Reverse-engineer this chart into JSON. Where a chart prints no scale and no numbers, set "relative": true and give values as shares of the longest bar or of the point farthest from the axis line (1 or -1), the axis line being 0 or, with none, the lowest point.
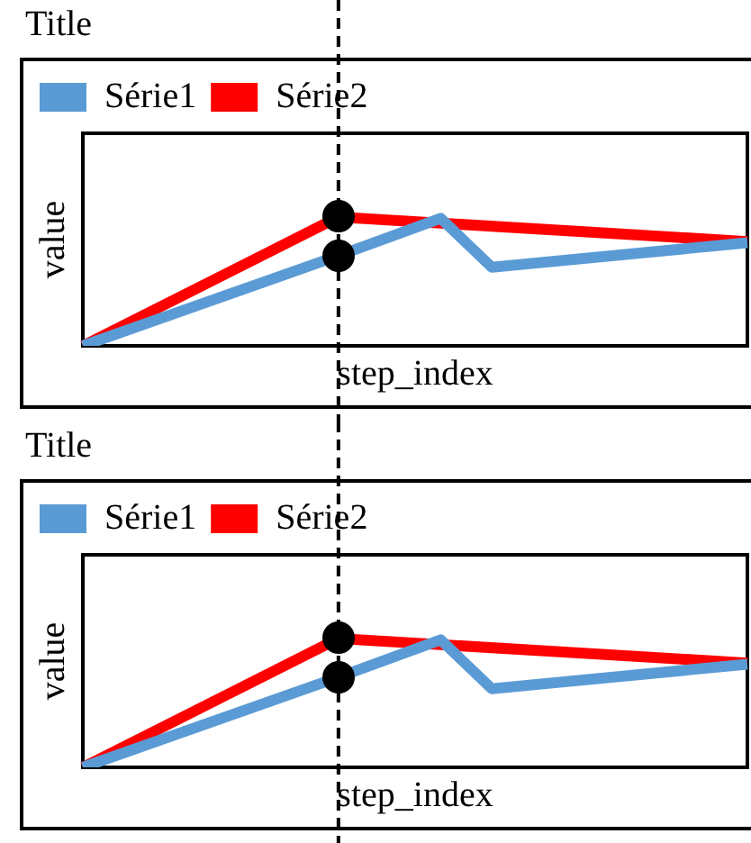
{
  "chart_data": [
    {
      "type": "line",
      "title": "Title",
      "xlabel": "step_index",
      "ylabel": "value",
      "relative": true,
      "legend": "top left",
      "grid": false,
      "categories": [
        null,
        null,
        null,
        null,
        null,
        null,
        null,
        null,
        null,
        null,
        null,
        null,
        null,
        null
      ],
      "series": [
        {
          "name": "Série1",
          "color": "#5b9bd5",
          "values": [
            0,
            null,
            null,
            null,
            null,
            0.7,
            null,
            0.99,
            0.61,
            null,
            null,
            null,
            null,
            0.8
          ]
        },
        {
          "name": "Série2",
          "color": "#ff0000",
          "values": [
            0,
            null,
            null,
            null,
            null,
            1,
            null,
            null,
            null,
            null,
            null,
            null,
            null,
            0.81
          ]
        }
      ]
    },
    {
      "type": "line",
      "title": "Title",
      "xlabel": "step_index",
      "ylabel": "value",
      "relative": true,
      "legend": "top left",
      "grid": false,
      "categories": [
        null,
        null,
        null,
        null,
        null,
        null,
        null,
        null,
        null,
        null,
        null,
        null,
        null,
        null
      ],
      "series": [
        {
          "name": "Série1",
          "color": "#5b9bd5",
          "values": [
            0,
            null,
            null,
            null,
            null,
            0.7,
            null,
            0.99,
            0.61,
            null,
            null,
            null,
            null,
            0.8
          ]
        },
        {
          "name": "Série2",
          "color": "#ff0000",
          "values": [
            0,
            null,
            null,
            null,
            null,
            1,
            null,
            null,
            null,
            null,
            null,
            null,
            null,
            0.81
          ]
        }
      ]
    }
  ]
}
